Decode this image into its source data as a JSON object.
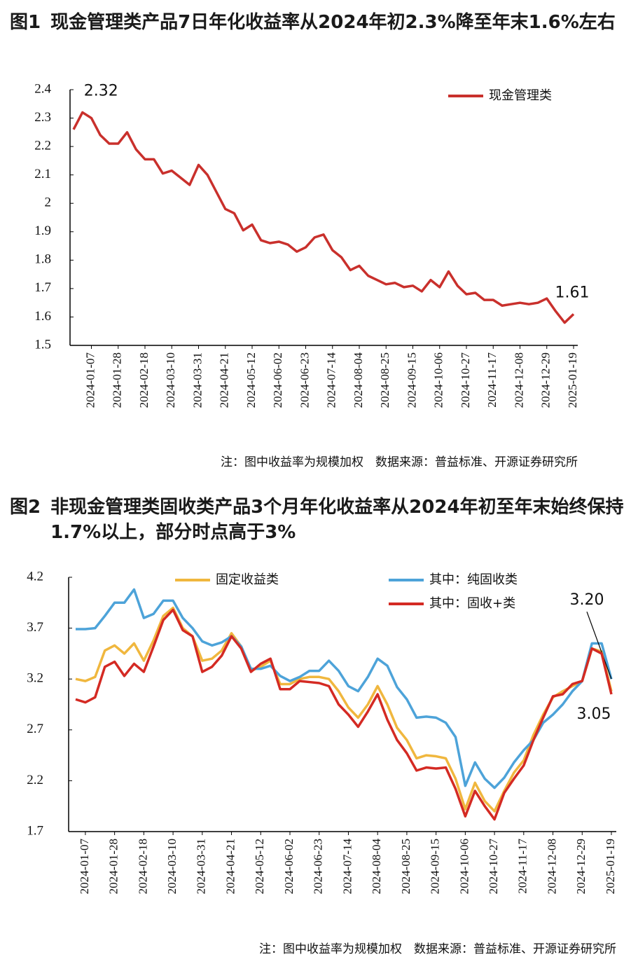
{
  "chart_data": [
    {
      "type": "line",
      "label": "图1",
      "title": "现金管理类产品7日年化收益率从2024年初2.3%降至年末1.6%左右",
      "categories": [
        null,
        null,
        "2024-01-07",
        null,
        null,
        "2024-01-28",
        null,
        null,
        "2024-02-18",
        null,
        null,
        "2024-03-10",
        null,
        null,
        "2024-03-31",
        null,
        null,
        "2024-04-21",
        null,
        null,
        "2024-05-12",
        null,
        null,
        "2024-06-02",
        null,
        null,
        "2024-06-23",
        null,
        null,
        "2024-07-14",
        null,
        null,
        "2024-08-04",
        null,
        null,
        "2024-08-25",
        null,
        null,
        "2024-09-15",
        null,
        null,
        "2024-10-06",
        null,
        null,
        "2024-10-27",
        null,
        null,
        "2024-11-17",
        null,
        null,
        "2024-12-08",
        null,
        null,
        "2024-12-29",
        null,
        null,
        "2025-01-19"
      ],
      "series": [
        {
          "name": "现金管理类",
          "color": "#c9302c",
          "values": [
            2.26,
            2.32,
            2.3,
            2.24,
            2.21,
            2.21,
            2.25,
            2.19,
            2.155,
            2.155,
            2.105,
            2.115,
            2.09,
            2.065,
            2.135,
            2.1,
            2.04,
            1.98,
            1.965,
            1.905,
            1.925,
            1.87,
            1.86,
            1.865,
            1.855,
            1.83,
            1.845,
            1.88,
            1.89,
            1.835,
            1.81,
            1.765,
            1.78,
            1.745,
            1.73,
            1.715,
            1.72,
            1.705,
            1.71,
            1.69,
            1.73,
            1.705,
            1.76,
            1.71,
            1.68,
            1.685,
            1.66,
            1.66,
            1.64,
            1.645,
            1.65,
            1.645,
            1.65,
            1.665,
            1.62,
            1.58,
            1.61
          ],
          "value_labels": [
            null,
            "2.32",
            null,
            null,
            null,
            null,
            null,
            null,
            null,
            null,
            null,
            null,
            null,
            null,
            null,
            null,
            null,
            null,
            null,
            null,
            null,
            null,
            null,
            null,
            null,
            null,
            null,
            null,
            null,
            null,
            null,
            null,
            null,
            null,
            null,
            null,
            null,
            null,
            null,
            null,
            null,
            null,
            null,
            null,
            null,
            null,
            null,
            null,
            null,
            null,
            null,
            null,
            null,
            null,
            null,
            null,
            "1.61"
          ]
        }
      ],
      "ylim": [
        1.5,
        2.4
      ],
      "yticks": [
        1.5,
        1.6,
        1.7,
        1.8,
        1.9,
        2,
        2.1,
        2.2,
        2.3,
        2.4
      ],
      "legend": "upper right",
      "note": "注：图中收益率为规模加权　数据来源：普益标准、开源证券研究所"
    },
    {
      "type": "line",
      "label": "图2",
      "title": "非现金管理类固收类产品3个月年化收益率从2024年初至年末始终保持1.7%以上，部分时点高于3%",
      "categories": [
        null,
        "2024-01-07",
        null,
        null,
        "2024-01-28",
        null,
        null,
        "2024-02-18",
        null,
        null,
        "2024-03-10",
        null,
        null,
        "2024-03-31",
        null,
        null,
        "2024-04-21",
        null,
        null,
        "2024-05-12",
        null,
        null,
        "2024-06-02",
        null,
        null,
        "2024-06-23",
        null,
        null,
        "2024-07-14",
        null,
        null,
        "2024-08-04",
        null,
        null,
        "2024-08-25",
        null,
        null,
        "2024-09-15",
        null,
        null,
        "2024-10-06",
        null,
        null,
        "2024-10-27",
        null,
        null,
        "2024-11-17",
        null,
        null,
        "2024-12-08",
        null,
        null,
        "2024-12-29",
        null,
        null,
        "2025-01-19"
      ],
      "series": [
        {
          "name": "固定收益类",
          "color": "#f0b73e",
          "values": [
            3.2,
            3.18,
            3.22,
            3.48,
            3.53,
            3.45,
            3.55,
            3.38,
            3.58,
            3.82,
            3.9,
            3.7,
            3.62,
            3.38,
            3.4,
            3.48,
            3.65,
            3.52,
            3.28,
            3.32,
            3.38,
            3.15,
            3.15,
            3.2,
            3.22,
            3.22,
            3.2,
            3.08,
            2.92,
            2.82,
            2.95,
            3.13,
            2.95,
            2.72,
            2.6,
            2.42,
            2.45,
            2.44,
            2.42,
            2.22,
            1.92,
            2.18,
            2.0,
            1.9,
            2.1,
            2.28,
            2.4,
            2.65,
            2.85,
            3.02,
            3.08,
            3.13,
            3.18,
            3.5,
            3.47,
            3.08
          ]
        },
        {
          "name": "其中：纯固收类",
          "color": "#4da3d9",
          "values": [
            3.69,
            3.69,
            3.7,
            3.82,
            3.95,
            3.95,
            4.08,
            3.8,
            3.84,
            3.97,
            3.97,
            3.8,
            3.7,
            3.57,
            3.53,
            3.56,
            3.62,
            3.52,
            3.3,
            3.3,
            3.33,
            3.23,
            3.18,
            3.22,
            3.28,
            3.28,
            3.38,
            3.28,
            3.13,
            3.08,
            3.22,
            3.4,
            3.33,
            3.12,
            3.0,
            2.82,
            2.83,
            2.82,
            2.77,
            2.63,
            2.15,
            2.38,
            2.22,
            2.13,
            2.23,
            2.38,
            2.5,
            2.6,
            2.77,
            2.85,
            2.95,
            3.08,
            3.18,
            3.55,
            3.55,
            3.2
          ],
          "value_labels": [
            null,
            null,
            null,
            null,
            null,
            null,
            null,
            null,
            null,
            null,
            null,
            null,
            null,
            null,
            null,
            null,
            null,
            null,
            null,
            null,
            null,
            null,
            null,
            null,
            null,
            null,
            null,
            null,
            null,
            null,
            null,
            null,
            null,
            null,
            null,
            null,
            null,
            null,
            null,
            null,
            null,
            null,
            null,
            null,
            null,
            null,
            null,
            null,
            null,
            null,
            null,
            null,
            null,
            null,
            null,
            "3.20"
          ]
        },
        {
          "name": "其中：固收+类",
          "color": "#d42a23",
          "values": [
            3.0,
            2.97,
            3.02,
            3.32,
            3.37,
            3.23,
            3.35,
            3.27,
            3.52,
            3.78,
            3.88,
            3.68,
            3.62,
            3.27,
            3.32,
            3.43,
            3.62,
            3.5,
            3.27,
            3.35,
            3.4,
            3.1,
            3.1,
            3.18,
            3.17,
            3.16,
            3.13,
            2.95,
            2.85,
            2.73,
            2.88,
            3.05,
            2.8,
            2.6,
            2.47,
            2.3,
            2.33,
            2.32,
            2.33,
            2.12,
            1.85,
            2.1,
            1.95,
            1.82,
            2.08,
            2.22,
            2.35,
            2.6,
            2.82,
            3.03,
            3.05,
            3.15,
            3.18,
            3.5,
            3.45,
            3.05
          ],
          "value_labels": [
            null,
            null,
            null,
            null,
            null,
            null,
            null,
            null,
            null,
            null,
            null,
            null,
            null,
            null,
            null,
            null,
            null,
            null,
            null,
            null,
            null,
            null,
            null,
            null,
            null,
            null,
            null,
            null,
            null,
            null,
            null,
            null,
            null,
            null,
            null,
            null,
            null,
            null,
            null,
            null,
            null,
            null,
            null,
            null,
            null,
            null,
            null,
            null,
            null,
            null,
            null,
            null,
            null,
            null,
            null,
            "3.05"
          ]
        }
      ],
      "ylim": [
        1.7,
        4.2
      ],
      "yticks": [
        1.7,
        2.2,
        2.7,
        3.2,
        3.7,
        4.2
      ],
      "legend": "top",
      "note": "注：图中收益率为规模加权　数据来源：普益标准、开源证券研究所"
    }
  ]
}
